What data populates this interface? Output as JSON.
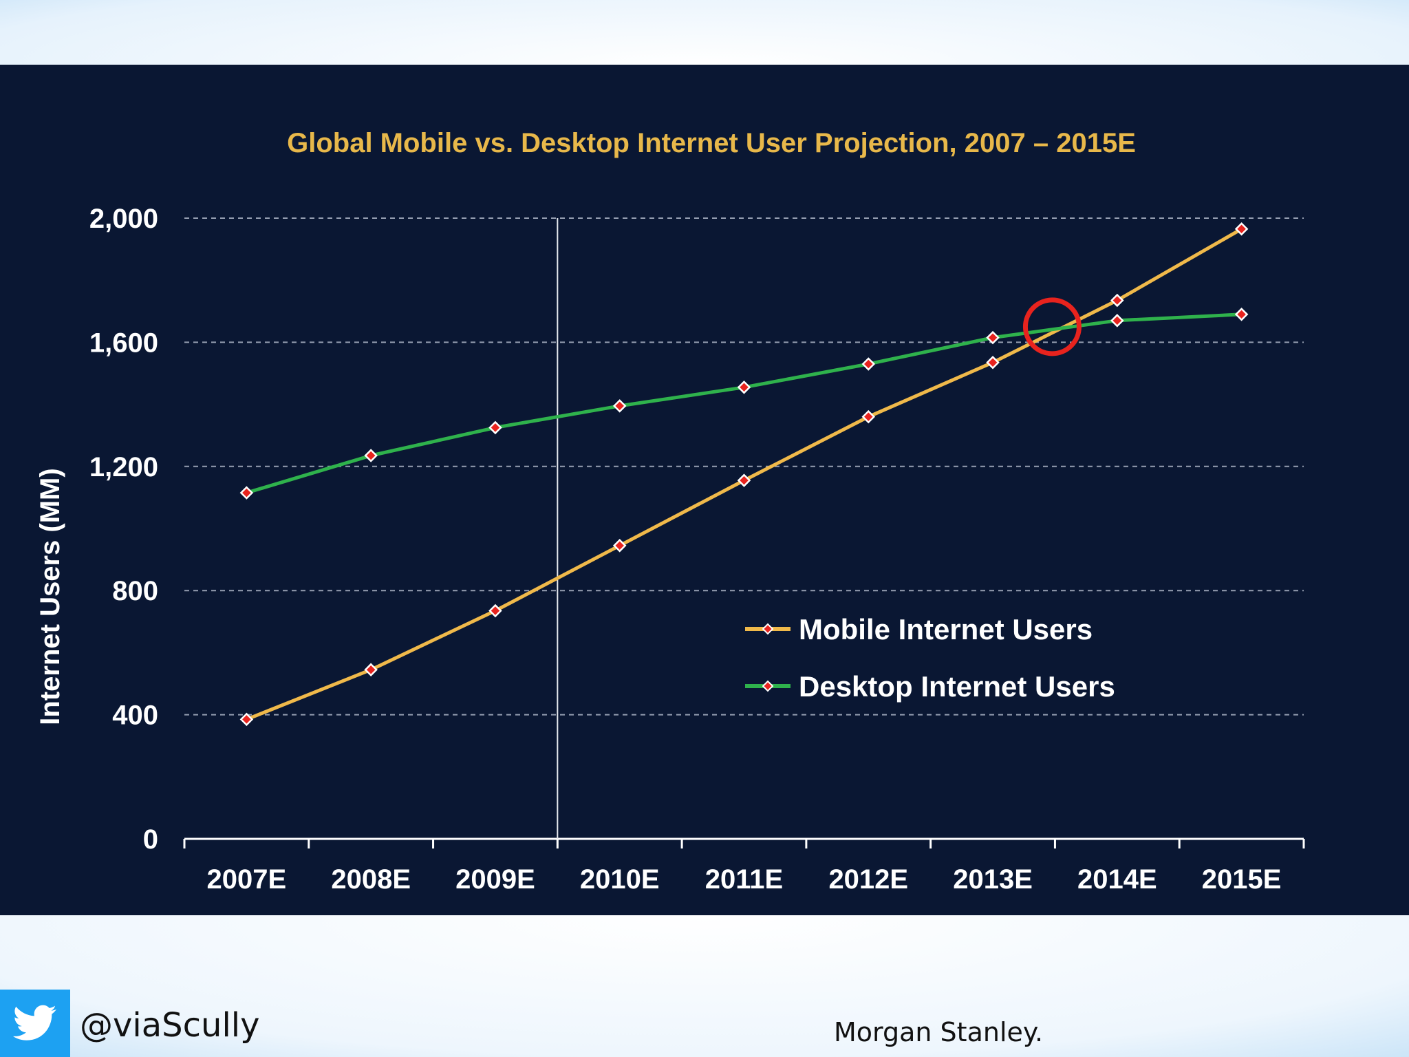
{
  "chart_data": {
    "type": "line",
    "title": "Global Mobile vs. Desktop Internet User Projection, 2007 – 2015E",
    "xlabel": "",
    "ylabel": "Internet Users (MM)",
    "categories": [
      "2007E",
      "2008E",
      "2009E",
      "2010E",
      "2011E",
      "2012E",
      "2013E",
      "2014E",
      "2015E"
    ],
    "ylim": [
      0,
      2000
    ],
    "yticks": [
      0,
      400,
      800,
      1200,
      1600,
      2000
    ],
    "ytick_labels": [
      "0",
      "400",
      "800",
      "1,200",
      "1,600",
      "2,000"
    ],
    "grid": "horizontal dashed",
    "legend_position": "lower-right",
    "series": [
      {
        "name": "Mobile Internet Users",
        "color": "#f0b94a",
        "marker_color": "#e8231e",
        "values": [
          385,
          545,
          735,
          945,
          1155,
          1360,
          1535,
          1735,
          1965
        ]
      },
      {
        "name": "Desktop Internet Users",
        "color": "#2fb24c",
        "marker_color": "#e8231e",
        "values": [
          1115,
          1235,
          1325,
          1395,
          1455,
          1530,
          1615,
          1670,
          1690
        ]
      }
    ],
    "divider_between": [
      "2009E",
      "2010E"
    ],
    "highlight": {
      "shape": "circle",
      "color": "#e8231e",
      "note": "crossover between 2013E and 2014E",
      "x_between": [
        "2013E",
        "2014E"
      ],
      "y": 1650
    }
  },
  "footer": {
    "handle": "@viaScully",
    "source": "Morgan Stanley.",
    "icon": "twitter-bird-icon"
  }
}
